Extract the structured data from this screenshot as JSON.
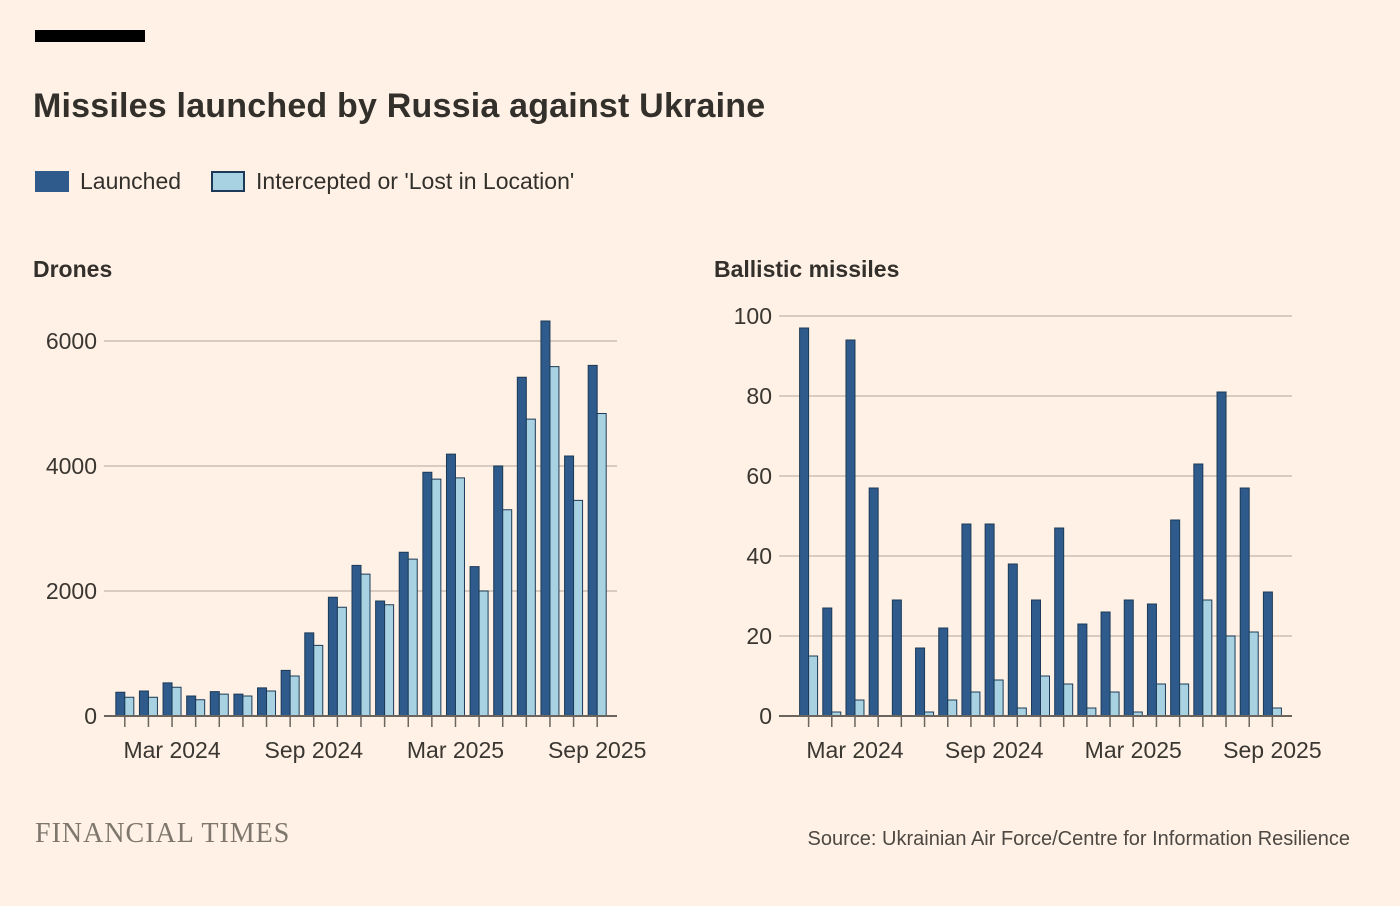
{
  "header": {
    "title": "Missiles launched by Russia against Ukraine"
  },
  "legend": [
    {
      "label": "Launched",
      "color": "#2E5B8C"
    },
    {
      "label": "Intercepted or 'Lost in Location'",
      "color": "#A8D2E1"
    }
  ],
  "colors": {
    "background": "#FFF1E5",
    "launched": "#2E5B8C",
    "intercepted": "#A8D2E1",
    "bar_outline": "#1C3A57",
    "gridline": "#CBC0B3",
    "axis_line": "#6B655E",
    "text": "#33302C"
  },
  "chart_data": [
    {
      "type": "bar",
      "title": "Drones",
      "categories": [
        "Jan 2024",
        "Feb 2024",
        "Mar 2024",
        "Apr 2024",
        "May 2024",
        "Jun 2024",
        "Jul 2024",
        "Aug 2024",
        "Sep 2024",
        "Oct 2024",
        "Nov 2024",
        "Dec 2024",
        "Jan 2025",
        "Feb 2025",
        "Mar 2025",
        "Apr 2025",
        "May 2025",
        "Jun 2025",
        "Jul 2025",
        "Aug 2025",
        "Sep 2025"
      ],
      "series": [
        {
          "name": "Launched",
          "values": [
            380,
            400,
            530,
            320,
            390,
            350,
            450,
            730,
            1330,
            1900,
            2410,
            1840,
            2620,
            3900,
            4190,
            2390,
            4000,
            5420,
            6320,
            4160,
            5610
          ]
        },
        {
          "name": "Intercepted or 'Lost in Location'",
          "values": [
            300,
            300,
            460,
            260,
            350,
            320,
            400,
            640,
            1130,
            1740,
            2270,
            1780,
            2510,
            3790,
            3810,
            2000,
            3300,
            4750,
            5590,
            3450,
            4840
          ]
        }
      ],
      "xlabel": "",
      "ylabel": "",
      "ylim": [
        0,
        6700
      ],
      "yticks": [
        0,
        2000,
        4000,
        6000
      ],
      "xtick_labels": [
        "Mar 2024",
        "Sep 2024",
        "Mar 2025",
        "Sep 2025"
      ],
      "grid": "horizontal",
      "legend_position": "top-shared"
    },
    {
      "type": "bar",
      "title": "Ballistic missiles",
      "categories": [
        "Jan 2024",
        "Feb 2024",
        "Mar 2024",
        "Apr 2024",
        "May 2024",
        "Jun 2024",
        "Jul 2024",
        "Aug 2024",
        "Sep 2024",
        "Oct 2024",
        "Nov 2024",
        "Dec 2024",
        "Jan 2025",
        "Feb 2025",
        "Mar 2025",
        "Apr 2025",
        "May 2025",
        "Jun 2025",
        "Jul 2025",
        "Aug 2025",
        "Sep 2025"
      ],
      "series": [
        {
          "name": "Launched",
          "values": [
            97,
            27,
            94,
            57,
            29,
            17,
            22,
            48,
            48,
            38,
            29,
            47,
            23,
            26,
            29,
            28,
            49,
            63,
            81,
            57,
            31
          ]
        },
        {
          "name": "Intercepted or 'Lost in Location'",
          "values": [
            15,
            1,
            4,
            0,
            0,
            1,
            4,
            6,
            9,
            2,
            10,
            8,
            2,
            6,
            1,
            8,
            8,
            29,
            20,
            21,
            2
          ]
        }
      ],
      "xlabel": "",
      "ylabel": "",
      "ylim": [
        0,
        100
      ],
      "yticks": [
        0,
        20,
        40,
        60,
        80,
        100
      ],
      "xtick_labels": [
        "Mar 2024",
        "Sep 2024",
        "Mar 2025",
        "Sep 2025"
      ],
      "grid": "horizontal",
      "legend_position": "top-shared"
    }
  ],
  "footer": {
    "brand": "FINANCIAL TIMES",
    "source": "Source: Ukrainian Air Force/Centre for Information Resilience"
  }
}
